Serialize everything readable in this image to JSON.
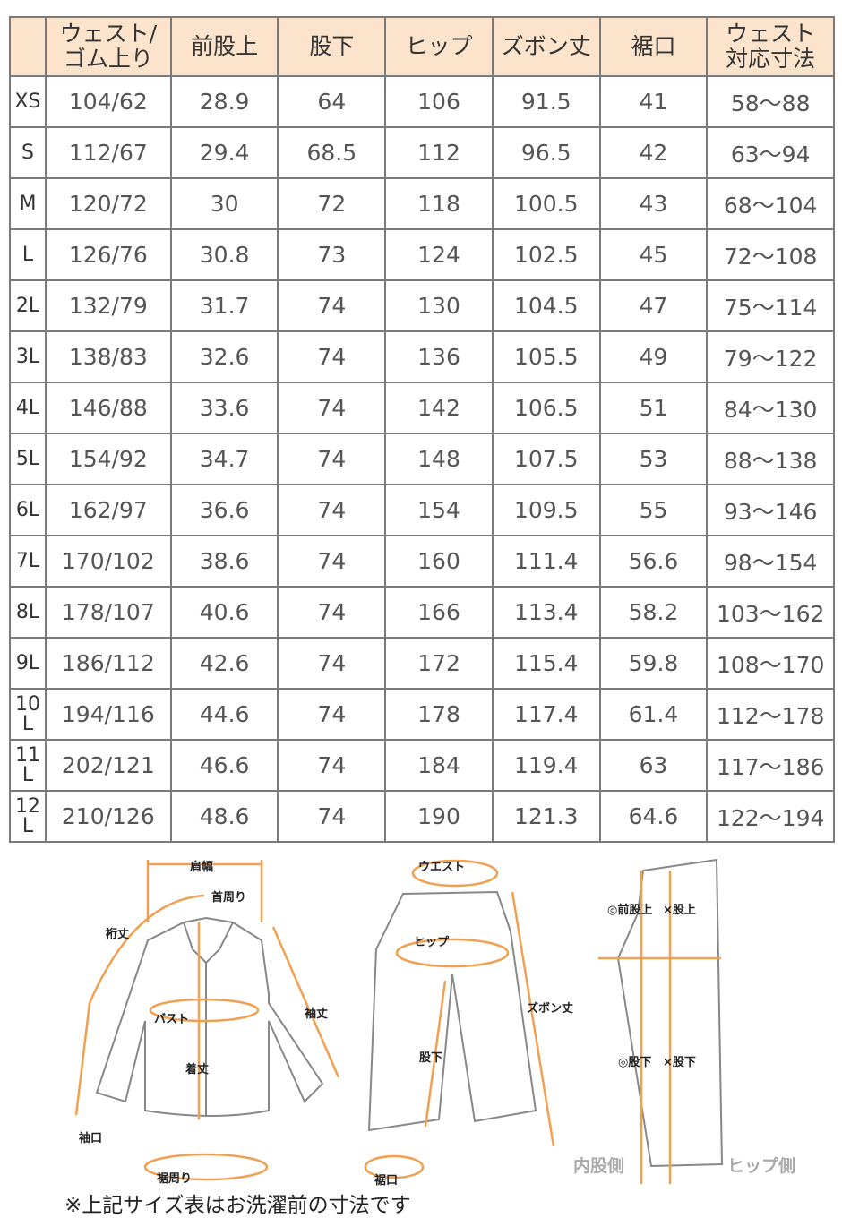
{
  "table": {
    "headers": [
      "",
      "ウェスト/\nゴム上り",
      "前股上",
      "股下",
      "ヒップ",
      "ズボン丈",
      "裾口",
      "ウェスト\n対応寸法"
    ],
    "rows": [
      [
        "XS",
        "104/62",
        "28.9",
        "64",
        "106",
        "91.5",
        "41",
        "58～88"
      ],
      [
        "S",
        "112/67",
        "29.4",
        "68.5",
        "112",
        "96.5",
        "42",
        "63～94"
      ],
      [
        "M",
        "120/72",
        "30",
        "72",
        "118",
        "100.5",
        "43",
        "68～104"
      ],
      [
        "L",
        "126/76",
        "30.8",
        "73",
        "124",
        "102.5",
        "45",
        "72～108"
      ],
      [
        "2L",
        "132/79",
        "31.7",
        "74",
        "130",
        "104.5",
        "47",
        "75～114"
      ],
      [
        "3L",
        "138/83",
        "32.6",
        "74",
        "136",
        "105.5",
        "49",
        "79～122"
      ],
      [
        "4L",
        "146/88",
        "33.6",
        "74",
        "142",
        "106.5",
        "51",
        "84～130"
      ],
      [
        "5L",
        "154/92",
        "34.7",
        "74",
        "148",
        "107.5",
        "53",
        "88～138"
      ],
      [
        "6L",
        "162/97",
        "36.6",
        "74",
        "154",
        "109.5",
        "55",
        "93～146"
      ],
      [
        "7L",
        "170/102",
        "38.6",
        "74",
        "160",
        "111.4",
        "56.6",
        "98～154"
      ],
      [
        "8L",
        "178/107",
        "40.6",
        "74",
        "166",
        "113.4",
        "58.2",
        "103～162"
      ],
      [
        "9L",
        "186/112",
        "42.6",
        "74",
        "172",
        "115.4",
        "59.8",
        "108～170"
      ],
      [
        "10L",
        "194/116",
        "44.6",
        "74",
        "178",
        "117.4",
        "61.4",
        "112～178"
      ],
      [
        "11L",
        "202/121",
        "46.6",
        "74",
        "184",
        "119.4",
        "63",
        "117～186"
      ],
      [
        "12L",
        "210/126",
        "48.6",
        "74",
        "190",
        "121.3",
        "64.6",
        "122～194"
      ]
    ]
  },
  "diagram": {
    "shirt": {
      "shoulder": "肩幅",
      "neck": "首周り",
      "yuki": "裄丈",
      "sleeve": "袖丈",
      "bust": "バスト",
      "length": "着丈",
      "cuff": "袖口",
      "hem": "裾周り"
    },
    "pants": {
      "waist": "ウエスト",
      "hip": "ヒップ",
      "inseam": "股下",
      "length": "ズボン丈",
      "hem": "裾口"
    },
    "side": {
      "rise_good": "◎前股上",
      "rise_bad": "×股上",
      "inseam_good": "◎股下",
      "inseam_bad": "×股下",
      "inner": "内股側",
      "hip_side": "ヒップ側"
    },
    "accent": "#f0a050"
  },
  "note": "※上記サイズ表はお洗濯前の寸法です"
}
